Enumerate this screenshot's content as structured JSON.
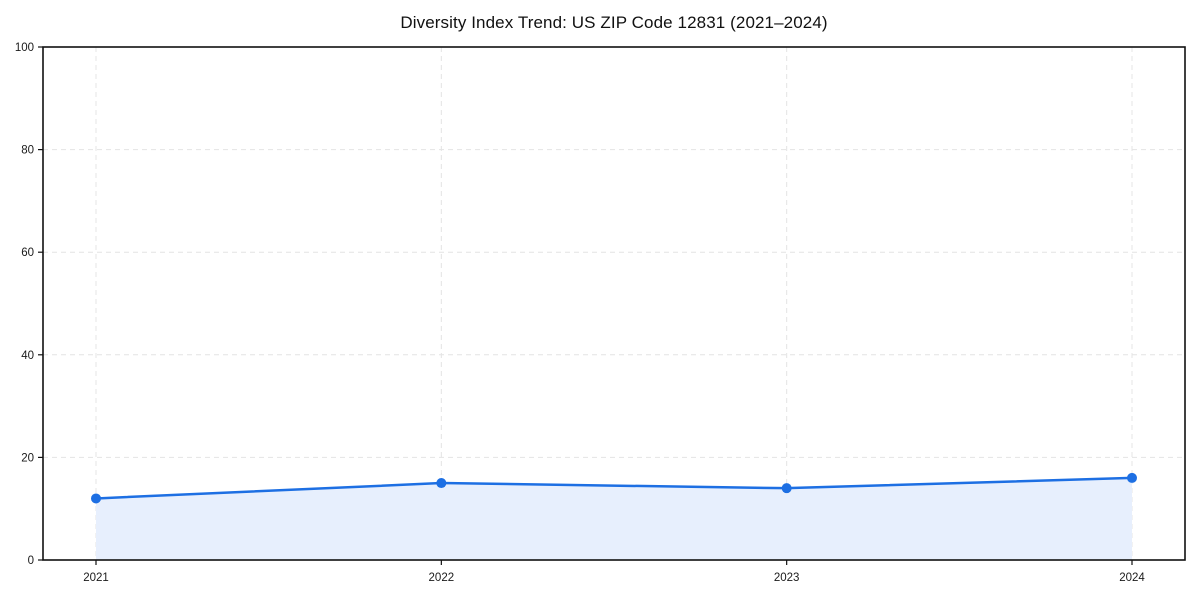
{
  "chart_data": {
    "type": "area",
    "title": "Diversity Index Trend: US ZIP Code 12831 (2021–2024)",
    "x": [
      2021,
      2022,
      2023,
      2024
    ],
    "series": [
      {
        "name": "Diversity Index",
        "values": [
          12,
          15,
          14,
          16
        ]
      }
    ],
    "xlabel": "",
    "ylabel": "",
    "ylim": [
      0,
      100
    ],
    "yticks": [
      0,
      20,
      40,
      60,
      80,
      100
    ],
    "grid": true,
    "legend_position": "none",
    "line_color": "#1d6fe3",
    "marker_color": "#1d6fe3",
    "fill_color": "#e7effd",
    "frame_color": "#111111",
    "grid_color": "#e4e4e4",
    "marker": "circle"
  }
}
